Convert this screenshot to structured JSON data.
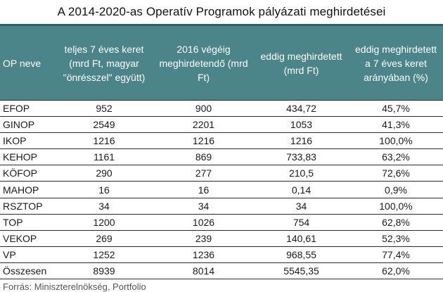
{
  "title": "A 2014-2020-as Operatív Programok pályázati meghirdetései",
  "headers": [
    "OP neve",
    "teljes 7 éves keret (mrd Ft, magyar \"önrésszel\" együtt)",
    "2016 végéig meghirdetendő (mrd Ft)",
    "eddig meghirdetett (mrd Ft)",
    "eddig meghirdetett a 7 éves keret arányában (%)"
  ],
  "rows": [
    [
      "EFOP",
      "952",
      "900",
      "434,72",
      "45,7%"
    ],
    [
      "GINOP",
      "2549",
      "2201",
      "1053",
      "41,3%"
    ],
    [
      "IKOP",
      "1216",
      "1216",
      "1216",
      "100,0%"
    ],
    [
      "KEHOP",
      "1161",
      "869",
      "733,83",
      "63,2%"
    ],
    [
      "KÖFOP",
      "290",
      "277",
      "210,5",
      "72,6%"
    ],
    [
      "MAHOP",
      "16",
      "16",
      "0,14",
      "0,9%"
    ],
    [
      "RSZTOP",
      "34",
      "34",
      "34",
      "100,0%"
    ],
    [
      "TOP",
      "1200",
      "1026",
      "754",
      "62,8%"
    ],
    [
      "VEKOP",
      "269",
      "239",
      "140,61",
      "52,3%"
    ],
    [
      "VP",
      "1252",
      "1236",
      "968,55",
      "77,4%"
    ],
    [
      "Összesen",
      "8939",
      "8014",
      "5545,35",
      "62,0%"
    ]
  ],
  "source": "Forrás: Miniszterelnökség, Portfolio"
}
